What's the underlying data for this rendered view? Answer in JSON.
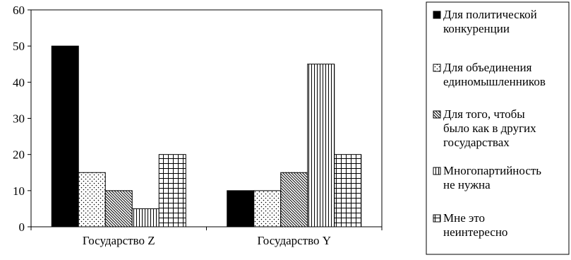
{
  "chart_data": {
    "type": "bar",
    "categories": [
      "Государство Z",
      "Государство Y"
    ],
    "series": [
      {
        "name": "Для политической конкуренции",
        "values": [
          50,
          10
        ],
        "pattern": "solid"
      },
      {
        "name": "Для объединения единомышленников",
        "values": [
          15,
          10
        ],
        "pattern": "dots"
      },
      {
        "name": "Для того, чтобы было как в других государствах",
        "values": [
          10,
          15
        ],
        "pattern": "diagonal"
      },
      {
        "name": "Многопартийность не нужна",
        "values": [
          5,
          45
        ],
        "pattern": "vertical"
      },
      {
        "name": "Мне это неинтересно",
        "values": [
          20,
          20
        ],
        "pattern": "grid"
      }
    ],
    "legend_lines": [
      [
        "Для политической",
        "конкуренции"
      ],
      [
        "Для объединения",
        "единомышленников"
      ],
      [
        "Для того, чтобы",
        "было как в других",
        "государствах"
      ],
      [
        "Многопартийность",
        "не нужна"
      ],
      [
        "Мне это",
        "неинтересно"
      ]
    ],
    "yticks": [
      "0",
      "10",
      "20",
      "30",
      "40",
      "50",
      "60"
    ],
    "ylim": [
      0,
      60
    ],
    "grid": false,
    "legend_position": "right",
    "colors": {
      "ink": "#000000",
      "paper": "#ffffff"
    }
  }
}
